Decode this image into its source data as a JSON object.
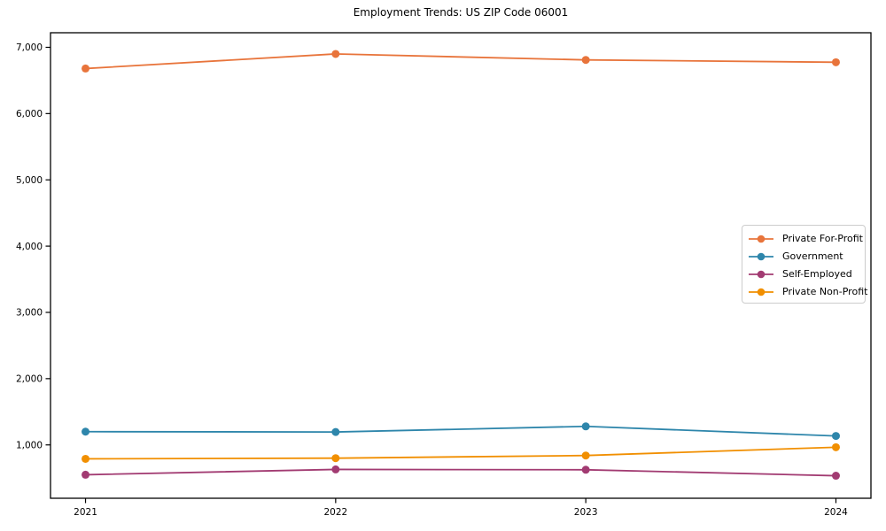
{
  "chart_data": {
    "type": "line",
    "title": "Employment Trends: US ZIP Code 06001",
    "xlabel": "",
    "ylabel": "",
    "grid": false,
    "legend_position": "center-right",
    "x": [
      2021,
      2022,
      2023,
      2024
    ],
    "x_tick_labels": [
      "2021",
      "2022",
      "2023",
      "2024"
    ],
    "y_ticks": [
      {
        "value": 1000,
        "label": "1,000"
      },
      {
        "value": 2000,
        "label": "2,000"
      },
      {
        "value": 3000,
        "label": "3,000"
      },
      {
        "value": 4000,
        "label": "4,000"
      },
      {
        "value": 5000,
        "label": "5,000"
      },
      {
        "value": 6000,
        "label": "6,000"
      },
      {
        "value": 7000,
        "label": "7,000"
      }
    ],
    "xlim": [
      2020.86,
      2024.14
    ],
    "ylim": [
      195,
      7220
    ],
    "series": [
      {
        "name": "Private For-Profit",
        "color": "#E8743B",
        "values": [
          6680,
          6900,
          6810,
          6775
        ]
      },
      {
        "name": "Government",
        "color": "#2E86AB",
        "values": [
          1200,
          1195,
          1280,
          1135
        ]
      },
      {
        "name": "Self-Employed",
        "color": "#A23B72",
        "values": [
          550,
          630,
          625,
          535
        ]
      },
      {
        "name": "Private Non-Profit",
        "color": "#F18F01",
        "values": [
          790,
          800,
          840,
          965
        ]
      }
    ],
    "frame_color": "#000000",
    "tick_label_color": "#000000"
  }
}
